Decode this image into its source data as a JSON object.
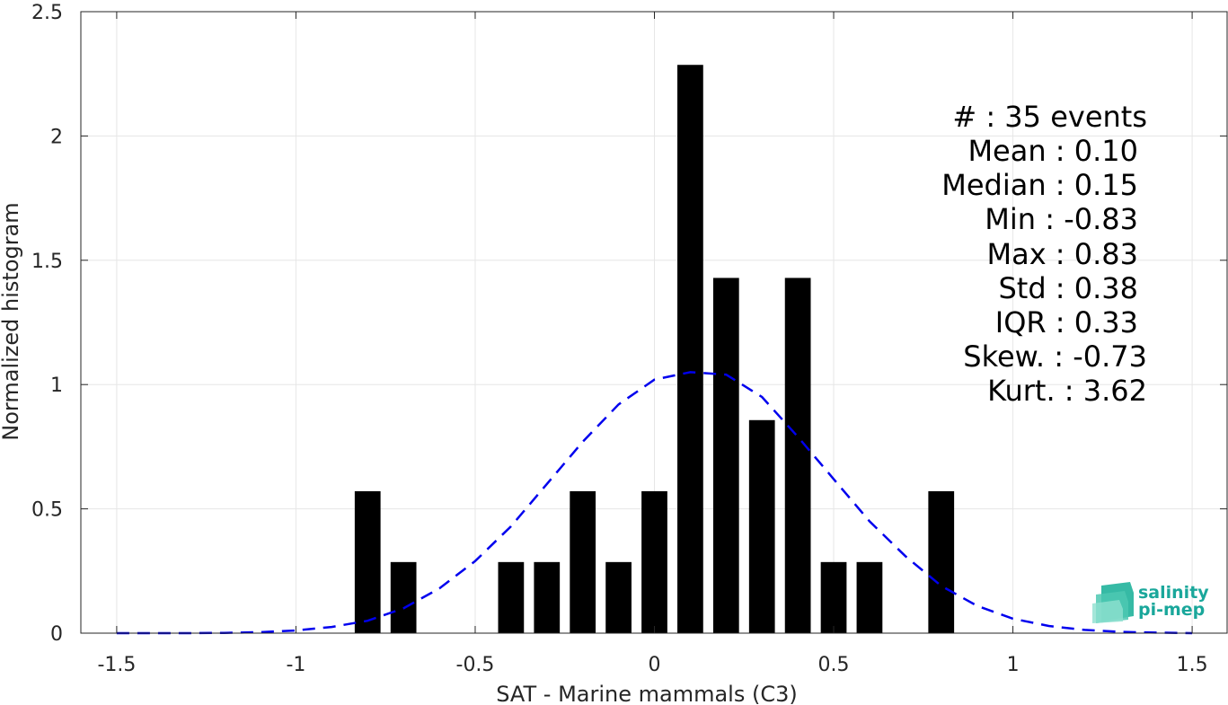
{
  "chart_data": {
    "type": "bar",
    "title": "",
    "xlabel": "SAT - Marine mammals (C3)",
    "ylabel": "Normalized histogram",
    "xlim": [
      -1.6,
      1.6
    ],
    "ylim": [
      0,
      2.5
    ],
    "xticks": [
      -1.5,
      -1,
      -0.5,
      0,
      0.5,
      1,
      1.5
    ],
    "xtick_labels": [
      "-1.5",
      "-1",
      "-0.5",
      "0",
      "0.5",
      "1",
      "1.5"
    ],
    "yticks": [
      0,
      0.5,
      1,
      1.5,
      2,
      2.5
    ],
    "ytick_labels": [
      "0",
      "0.5",
      "1",
      "1.5",
      "2",
      "2.5"
    ],
    "grid": true,
    "bin_width": 0.1,
    "bar_color": "#000000",
    "bars": [
      {
        "x": -0.8,
        "y": 0.571
      },
      {
        "x": -0.7,
        "y": 0.286
      },
      {
        "x": -0.4,
        "y": 0.286
      },
      {
        "x": -0.3,
        "y": 0.286
      },
      {
        "x": -0.2,
        "y": 0.571
      },
      {
        "x": -0.1,
        "y": 0.286
      },
      {
        "x": 0.0,
        "y": 0.571
      },
      {
        "x": 0.1,
        "y": 2.286
      },
      {
        "x": 0.2,
        "y": 1.429
      },
      {
        "x": 0.3,
        "y": 0.857
      },
      {
        "x": 0.4,
        "y": 1.429
      },
      {
        "x": 0.5,
        "y": 0.286
      },
      {
        "x": 0.6,
        "y": 0.286
      },
      {
        "x": 0.8,
        "y": 0.571
      }
    ],
    "fit_curve": {
      "style": "dashed",
      "color": "#0000ee",
      "x": [
        -1.5,
        -1.4,
        -1.3,
        -1.2,
        -1.1,
        -1.0,
        -0.9,
        -0.8,
        -0.7,
        -0.6,
        -0.5,
        -0.4,
        -0.3,
        -0.2,
        -0.1,
        0.0,
        0.1,
        0.2,
        0.3,
        0.4,
        0.5,
        0.6,
        0.7,
        0.8,
        0.9,
        1.0,
        1.1,
        1.2,
        1.3,
        1.4,
        1.5
      ],
      "y": [
        0.0,
        0.0,
        0.0,
        0.001,
        0.004,
        0.011,
        0.025,
        0.05,
        0.1,
        0.18,
        0.29,
        0.43,
        0.6,
        0.77,
        0.92,
        1.02,
        1.05,
        1.04,
        0.95,
        0.79,
        0.62,
        0.45,
        0.31,
        0.19,
        0.11,
        0.058,
        0.029,
        0.013,
        0.005,
        0.002,
        0.0
      ]
    }
  },
  "stats": [
    {
      "label": "#  : 35 events"
    },
    {
      "label": "Mean : 0.10"
    },
    {
      "label": "Median : 0.15"
    },
    {
      "label": "Min : -0.83"
    },
    {
      "label": "Max : 0.83"
    },
    {
      "label": "Std : 0.38"
    },
    {
      "label": "IQR : 0.33"
    },
    {
      "label": "Skew. : -0.73"
    },
    {
      "label": "Kurt. : 3.62"
    }
  ],
  "logo": {
    "line1": "salinity",
    "line2": "pi-mep",
    "color": "#1aa79b"
  }
}
